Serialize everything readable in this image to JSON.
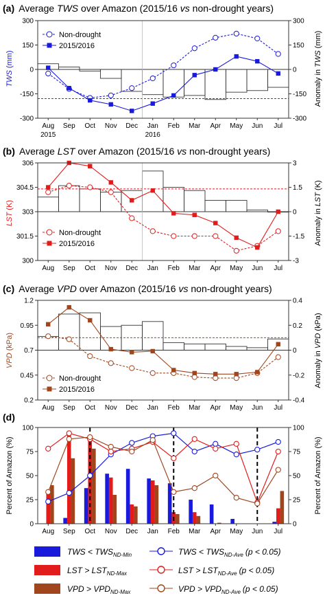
{
  "months": [
    "Aug",
    "Sep",
    "Oct",
    "Nov",
    "Dec",
    "Jan",
    "Feb",
    "Mar",
    "Apr",
    "May",
    "Jun",
    "Jul"
  ],
  "year_labels": [
    {
      "label": "2015",
      "index": 0
    },
    {
      "label": "2016",
      "index": 5
    }
  ],
  "colors": {
    "tws": "#1a1adc",
    "lst": "#e21b1b",
    "vpd": "#a0451c"
  },
  "chart_data": [
    {
      "id": "a",
      "type": "line+bar",
      "title_prefix": "(a)",
      "title_pre": "Average ",
      "title_var": "TWS",
      "title_post": " over Amazon (2015/16 ",
      "title_vs": "vs",
      "title_end": " non-drought years)",
      "ylabel": "TWS",
      "ylabel_unit": "(mm)",
      "y2label_pre": "Anomaly in ",
      "y2label_var": "TWS",
      "y2label_unit": "(mm)",
      "ylim": [
        -300,
        300
      ],
      "yticks": [
        "-300",
        "-150",
        "0",
        "150",
        "300"
      ],
      "ytick_vals": [
        -300,
        -150,
        0,
        150,
        300
      ],
      "y2lim": [
        -300,
        300
      ],
      "y2ticks": [
        "-300",
        "-150",
        "0",
        "150",
        "300"
      ],
      "y2tick_vals": [
        -300,
        -150,
        0,
        150,
        300
      ],
      "ref_line": -180,
      "series": [
        {
          "name": "Non-drought",
          "style": "open",
          "values": [
            -25,
            -120,
            -175,
            -160,
            -115,
            -55,
            25,
            130,
            195,
            220,
            190,
            95
          ]
        },
        {
          "name": "2015/2016",
          "style": "filled",
          "values": [
            10,
            -115,
            -190,
            -215,
            -255,
            -210,
            -160,
            -35,
            0,
            80,
            50,
            -25
          ]
        }
      ],
      "bars": [
        35,
        15,
        -10,
        -55,
        -135,
        -155,
        -170,
        -160,
        -185,
        -140,
        -130,
        -110
      ],
      "legend_pos": "top-left"
    },
    {
      "id": "b",
      "type": "line+bar",
      "title_prefix": "(b)",
      "title_pre": "Average ",
      "title_var": "LST",
      "title_post": " over Amazon (2015/16 ",
      "title_vs": "vs",
      "title_end": " non-drought years)",
      "ylabel": "LST",
      "ylabel_unit": "(K)",
      "y2label_pre": "Anomaly in ",
      "y2label_var": "LST",
      "y2label_unit": "(K)",
      "ylim": [
        300,
        306
      ],
      "yticks": [
        "300",
        "301.5",
        "303",
        "304.5",
        "306"
      ],
      "ytick_vals": [
        300,
        301.5,
        303,
        304.5,
        306
      ],
      "y2lim": [
        -3,
        3
      ],
      "y2ticks": [
        "-3",
        "-1.5",
        "0",
        "1.5",
        "3"
      ],
      "y2tick_vals": [
        -3,
        -1.5,
        0,
        1.5,
        3
      ],
      "ref_line": 1.4,
      "series": [
        {
          "name": "Non-drought",
          "style": "open",
          "values": [
            304.2,
            304.6,
            304.5,
            304.2,
            302.6,
            301.8,
            301.5,
            301.5,
            301.5,
            300.6,
            300.9,
            301.8
          ]
        },
        {
          "name": "2015/2016",
          "style": "filled",
          "values": [
            304.5,
            306,
            305.8,
            304.8,
            303.7,
            304.3,
            302.9,
            302.8,
            302.3,
            301.4,
            300.8,
            303.0
          ]
        }
      ],
      "bars": [
        0.9,
        1.6,
        1.4,
        1.2,
        1.3,
        2.5,
        1.5,
        1.3,
        0.7,
        0.7,
        0.1,
        0.0
      ],
      "legend_pos": "bottom-left"
    },
    {
      "id": "c",
      "type": "line+bar",
      "title_prefix": "(c)",
      "title_pre": "Average ",
      "title_var": "VPD",
      "title_post": " over Amazon (2015/16 ",
      "title_vs": "vs",
      "title_end": " non-drought years)",
      "ylabel": "VPD",
      "ylabel_unit": "(kPa)",
      "y2label_pre": "Anomaly in ",
      "y2label_var": "VPD",
      "y2label_unit": "(kPa)",
      "ylim": [
        0.2,
        1.2
      ],
      "yticks": [
        "0.2",
        "0.45",
        "0.7",
        "0.95",
        "1.2"
      ],
      "ytick_vals": [
        0.2,
        0.45,
        0.7,
        0.95,
        1.2
      ],
      "y2lim": [
        -0.4,
        0.4
      ],
      "y2ticks": [
        "-0.4",
        "-0.2",
        "0",
        "0.2",
        "0.4"
      ],
      "y2tick_vals": [
        -0.4,
        -0.2,
        0,
        0.2,
        0.4
      ],
      "ref_line": 0.1,
      "series": [
        {
          "name": "Non-drought",
          "style": "open",
          "values": [
            0.84,
            0.81,
            0.64,
            0.57,
            0.52,
            0.47,
            0.47,
            0.43,
            0.42,
            0.42,
            0.47,
            0.63
          ]
        },
        {
          "name": "2015/2016",
          "style": "filled",
          "values": [
            0.96,
            1.13,
            1.0,
            0.71,
            0.68,
            0.69,
            0.5,
            0.47,
            0.46,
            0.46,
            0.48,
            0.76
          ]
        }
      ],
      "bars": [
        0.11,
        0.29,
        0.3,
        0.19,
        0.2,
        0.23,
        0.06,
        0.05,
        0.05,
        0.03,
        0.02,
        0.09
      ],
      "legend_pos": "bottom-left"
    },
    {
      "id": "d",
      "type": "line+bar",
      "title_prefix": "(d)",
      "ylabel": "Percent of Amazon (%)",
      "y2label": "Percent of Amazon (%)",
      "ylim": [
        0,
        100
      ],
      "yticks": [
        "0",
        "25",
        "50",
        "75",
        "100"
      ],
      "ytick_vals": [
        0,
        25,
        50,
        75,
        100
      ],
      "y2ticks": [
        "0",
        "25",
        "50",
        "75",
        "100"
      ],
      "dashed_dividers": [
        2.5,
        6.5,
        10.5
      ],
      "bars": {
        "tws": [
          0,
          6,
          37,
          52,
          57,
          47,
          42,
          25,
          20,
          5,
          0,
          2
        ],
        "lst": [
          34,
          94,
          87,
          48,
          20,
          45,
          12,
          12,
          0,
          0,
          0,
          16
        ],
        "vpd": [
          40,
          68,
          78,
          30,
          18,
          40,
          10,
          8,
          1,
          0,
          0,
          34
        ]
      },
      "lines": {
        "tws": [
          23,
          32,
          50,
          72,
          84,
          91,
          94,
          75,
          83,
          72,
          77,
          85
        ],
        "lst": [
          78,
          94,
          88,
          75,
          78,
          85,
          68,
          88,
          78,
          83,
          22,
          75
        ],
        "vpd": [
          33,
          88,
          90,
          80,
          75,
          87,
          33,
          37,
          50,
          27,
          21,
          56
        ]
      },
      "legend": {
        "bar_tws_pre": "TWS < TWS",
        "bar_tws_sub": "ND-Min",
        "bar_lst_pre": "LST > LST",
        "bar_lst_sub": "ND-Max",
        "bar_vpd_pre": "VPD > VPD",
        "bar_vpd_sub": "ND-Max",
        "line_tws_pre": "TWS < TWS",
        "line_tws_sub": "ND-Ave",
        "line_tws_post": "(p < 0.05)",
        "line_lst_pre": "LST > LST",
        "line_lst_sub": "ND-Ave",
        "line_lst_post": "(p < 0.05)",
        "line_vpd_pre": "VPD > VPD",
        "line_vpd_sub": "ND-Ave",
        "line_vpd_post": "(p < 0.05)"
      }
    }
  ]
}
